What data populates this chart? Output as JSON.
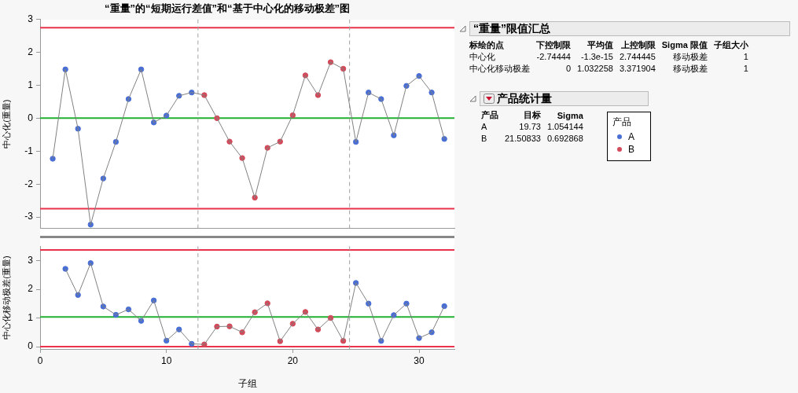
{
  "chart_data": [
    {
      "type": "line",
      "title": "“重量”的“短期运行差值”和“基于中心化的移动极差”图",
      "ylabel": "中心化(重量)",
      "x": [
        1,
        2,
        3,
        4,
        5,
        6,
        7,
        8,
        9,
        10,
        11,
        12,
        13,
        14,
        15,
        16,
        17,
        18,
        19,
        20,
        21,
        22,
        23,
        24,
        25,
        26,
        27,
        28,
        29,
        30,
        31,
        32
      ],
      "xlim": [
        0,
        32.8
      ],
      "xticks": [
        0,
        10,
        20,
        30
      ],
      "ylim": [
        -3.35,
        3
      ],
      "yticks": [
        -3,
        -2,
        -1,
        0,
        1,
        2,
        3
      ],
      "tick_labels": "y",
      "grid": false,
      "legend": "right",
      "legend_title": "产品",
      "series": [
        {
          "color": "#808080",
          "values": [
            -1.23,
            1.48,
            -0.32,
            -3.23,
            -1.83,
            -0.72,
            0.58,
            1.48,
            -0.13,
            0.08,
            0.68,
            0.78,
            0.7,
            0.0,
            -0.71,
            -1.21,
            -2.41,
            -0.9,
            -0.71,
            0.09,
            1.3,
            0.7,
            1.7,
            1.5,
            -0.72,
            0.78,
            0.58,
            -0.52,
            0.98,
            1.28,
            0.78,
            -0.63
          ]
        },
        {
          "name": "A",
          "type": "scatter",
          "color": "#4a6fd4",
          "values": [
            -1.23,
            1.48,
            -0.32,
            -3.23,
            -1.83,
            -0.72,
            0.58,
            1.48,
            -0.13,
            0.08,
            0.68,
            0.78,
            null,
            null,
            null,
            null,
            null,
            null,
            null,
            null,
            null,
            null,
            null,
            null,
            -0.72,
            0.78,
            0.58,
            -0.52,
            0.98,
            1.28,
            0.78,
            -0.63
          ]
        },
        {
          "name": "B",
          "type": "scatter",
          "color": "#d24b5a",
          "values": [
            null,
            null,
            null,
            null,
            null,
            null,
            null,
            null,
            null,
            null,
            null,
            null,
            0.7,
            0.0,
            -0.71,
            -1.21,
            -2.41,
            -0.9,
            -0.71,
            0.09,
            1.3,
            0.7,
            1.7,
            1.5,
            null,
            null,
            null,
            null,
            null,
            null,
            null,
            null
          ]
        }
      ],
      "ref_lines": [
        {
          "axis": "y",
          "value": 2.744445,
          "color": "#e8334a"
        },
        {
          "axis": "y",
          "value": 0,
          "color": "#22b033"
        },
        {
          "axis": "y",
          "value": -2.74444,
          "color": "#e8334a"
        },
        {
          "axis": "x",
          "value": 12.5,
          "color": "#a0a0a0",
          "line_style": "dashed"
        },
        {
          "axis": "x",
          "value": 24.5,
          "color": "#a0a0a0",
          "line_style": "dashed"
        }
      ]
    },
    {
      "type": "line",
      "ylabel": "中心化移动极差(重量)",
      "xlabel": "子组",
      "x": [
        2,
        3,
        4,
        5,
        6,
        7,
        8,
        9,
        10,
        11,
        12,
        13,
        14,
        15,
        16,
        17,
        18,
        19,
        20,
        21,
        22,
        23,
        24,
        25,
        26,
        27,
        28,
        29,
        30,
        31,
        32
      ],
      "xlim": [
        0,
        32.8
      ],
      "xticks": [
        0,
        10,
        20,
        30
      ],
      "ylim": [
        -0.08,
        3.5
      ],
      "yticks": [
        0,
        1,
        2,
        3
      ],
      "grid": false,
      "series": [
        {
          "color": "#808080",
          "values": [
            2.71,
            1.8,
            2.91,
            1.4,
            1.11,
            1.3,
            0.9,
            1.61,
            0.21,
            0.6,
            0.1,
            0.08,
            0.7,
            0.71,
            0.5,
            1.2,
            1.51,
            0.19,
            0.8,
            1.21,
            0.6,
            1.0,
            0.2,
            2.22,
            1.5,
            0.2,
            1.1,
            1.5,
            0.3,
            0.5,
            1.41
          ]
        },
        {
          "type": "scatter",
          "color": "#4a6fd4",
          "values": [
            2.71,
            1.8,
            2.91,
            1.4,
            1.11,
            1.3,
            0.9,
            1.61,
            0.21,
            0.6,
            0.1,
            null,
            null,
            null,
            null,
            null,
            null,
            null,
            null,
            null,
            null,
            null,
            null,
            2.22,
            1.5,
            0.2,
            1.1,
            1.5,
            0.3,
            0.5,
            1.41
          ]
        },
        {
          "type": "scatter",
          "color": "#d24b5a",
          "values": [
            null,
            null,
            null,
            null,
            null,
            null,
            null,
            null,
            null,
            null,
            null,
            0.08,
            0.7,
            0.71,
            0.5,
            1.2,
            1.51,
            0.19,
            0.8,
            1.21,
            0.6,
            1.0,
            0.2,
            null,
            null,
            null,
            null,
            null,
            null,
            null,
            null
          ]
        }
      ],
      "ref_lines": [
        {
          "axis": "y",
          "value": 3.371904,
          "color": "#e8334a"
        },
        {
          "axis": "y",
          "value": 1.032258,
          "color": "#22b033"
        },
        {
          "axis": "y",
          "value": 0,
          "color": "#e8334a"
        },
        {
          "axis": "x",
          "value": 12.5,
          "color": "#a0a0a0",
          "line_style": "dashed"
        },
        {
          "axis": "x",
          "value": 24.5,
          "color": "#a0a0a0",
          "line_style": "dashed"
        }
      ]
    },
    {
      "type": "other",
      "title": "“重量”限值汇总",
      "categories": [
        "标绘的点",
        "下控制限",
        "平均值",
        "上控制限",
        "Sigma 限值",
        "子组大小"
      ],
      "annotations": [
        "中心化",
        "-2.74444",
        "-1.3e-15",
        "2.744445",
        "移动极差",
        "1",
        "中心化移动极差",
        "0",
        "1.032258",
        "3.371904",
        "移动极差",
        "1"
      ]
    },
    {
      "type": "other",
      "title": "产品统计量",
      "categories": [
        "产品",
        "目标",
        "Sigma"
      ],
      "annotations": [
        "A",
        "19.73",
        "1.054144",
        "B",
        "21.50833",
        "0.692868"
      ]
    }
  ]
}
